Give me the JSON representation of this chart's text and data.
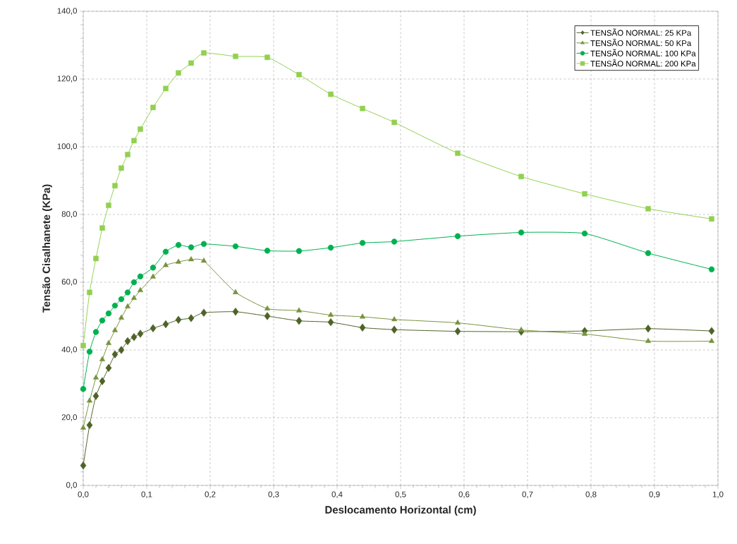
{
  "chart_data": {
    "type": "line",
    "xlabel": "Deslocamento Horizontal (cm)",
    "ylabel": "Tensão Cisalhanete (KPa)",
    "x": [
      0,
      0.01,
      0.02,
      0.03,
      0.04,
      0.05,
      0.06,
      0.07,
      0.08,
      0.09,
      0.11,
      0.13,
      0.15,
      0.17,
      0.19,
      0.24,
      0.29,
      0.34,
      0.39,
      0.44,
      0.49,
      0.59,
      0.69,
      0.79,
      0.89,
      0.99
    ],
    "series": [
      {
        "name": "TENSÃO NORMAL: 25 KPa",
        "color": "#4f6228",
        "marker": "diamond",
        "values": [
          5.9,
          17.8,
          26.4,
          30.8,
          34.7,
          38.7,
          40,
          42.6,
          43.8,
          44.8,
          46.4,
          47.6,
          48.9,
          49.4,
          51,
          51.3,
          50,
          48.6,
          48.2,
          46.6,
          46,
          45.5,
          45.4,
          45.6,
          46.3,
          45.6
        ]
      },
      {
        "name": "TENSÃO NORMAL: 50 KPa",
        "color": "#77933c",
        "marker": "triangle",
        "values": [
          17,
          25,
          31.8,
          37.2,
          42,
          45.8,
          49.5,
          52.8,
          55.3,
          57.6,
          61.6,
          65,
          66,
          66.7,
          66.3,
          57,
          52.2,
          51.6,
          50.3,
          49.8,
          49,
          48,
          45.9,
          44.7,
          42.6,
          42.6
        ]
      },
      {
        "name": "TENSÃO NORMAL: 100 KPa",
        "color": "#00b050",
        "marker": "circle",
        "values": [
          28.5,
          39.5,
          45.3,
          48.7,
          50.8,
          53.1,
          55,
          57,
          60,
          61.7,
          64.3,
          69,
          71,
          70.3,
          71.3,
          70.6,
          69.3,
          69.2,
          70.2,
          71.6,
          72,
          73.6,
          74.7,
          74.4,
          68.6,
          63.8
        ]
      },
      {
        "name": "TENSÃO NORMAL: 200 KPa",
        "color": "#92d050",
        "marker": "square",
        "values": [
          41.3,
          57,
          67,
          76,
          82.7,
          88.5,
          93.7,
          97.7,
          101.8,
          105.2,
          111.6,
          117.2,
          121.8,
          124.7,
          127.7,
          126.7,
          126.4,
          121.3,
          115.5,
          111.3,
          107.2,
          98.1,
          91.2,
          86.1,
          81.7,
          78.7
        ]
      }
    ],
    "xlim": [
      0,
      1
    ],
    "ylim": [
      0,
      140
    ],
    "xticks": [
      {
        "value": 0,
        "label": "0,0"
      },
      {
        "value": 0.1,
        "label": "0,1"
      },
      {
        "value": 0.2,
        "label": "0,2"
      },
      {
        "value": 0.3,
        "label": "0,3"
      },
      {
        "value": 0.4,
        "label": "0,4"
      },
      {
        "value": 0.5,
        "label": "0,5"
      },
      {
        "value": 0.6,
        "label": "0,6"
      },
      {
        "value": 0.7,
        "label": "0,7"
      },
      {
        "value": 0.8,
        "label": "0,8"
      },
      {
        "value": 0.9,
        "label": "0,9"
      },
      {
        "value": 1,
        "label": "1,0"
      }
    ],
    "yticks": [
      {
        "value": 0,
        "label": "0,0"
      },
      {
        "value": 20,
        "label": "20,0"
      },
      {
        "value": 40,
        "label": "40,0"
      },
      {
        "value": 60,
        "label": "60,0"
      },
      {
        "value": 80,
        "label": "80,0"
      },
      {
        "value": 100,
        "label": "100,0"
      },
      {
        "value": 120,
        "label": "120,0"
      },
      {
        "value": 140,
        "label": "140,0"
      }
    ],
    "grid": true,
    "legend": "top right"
  }
}
